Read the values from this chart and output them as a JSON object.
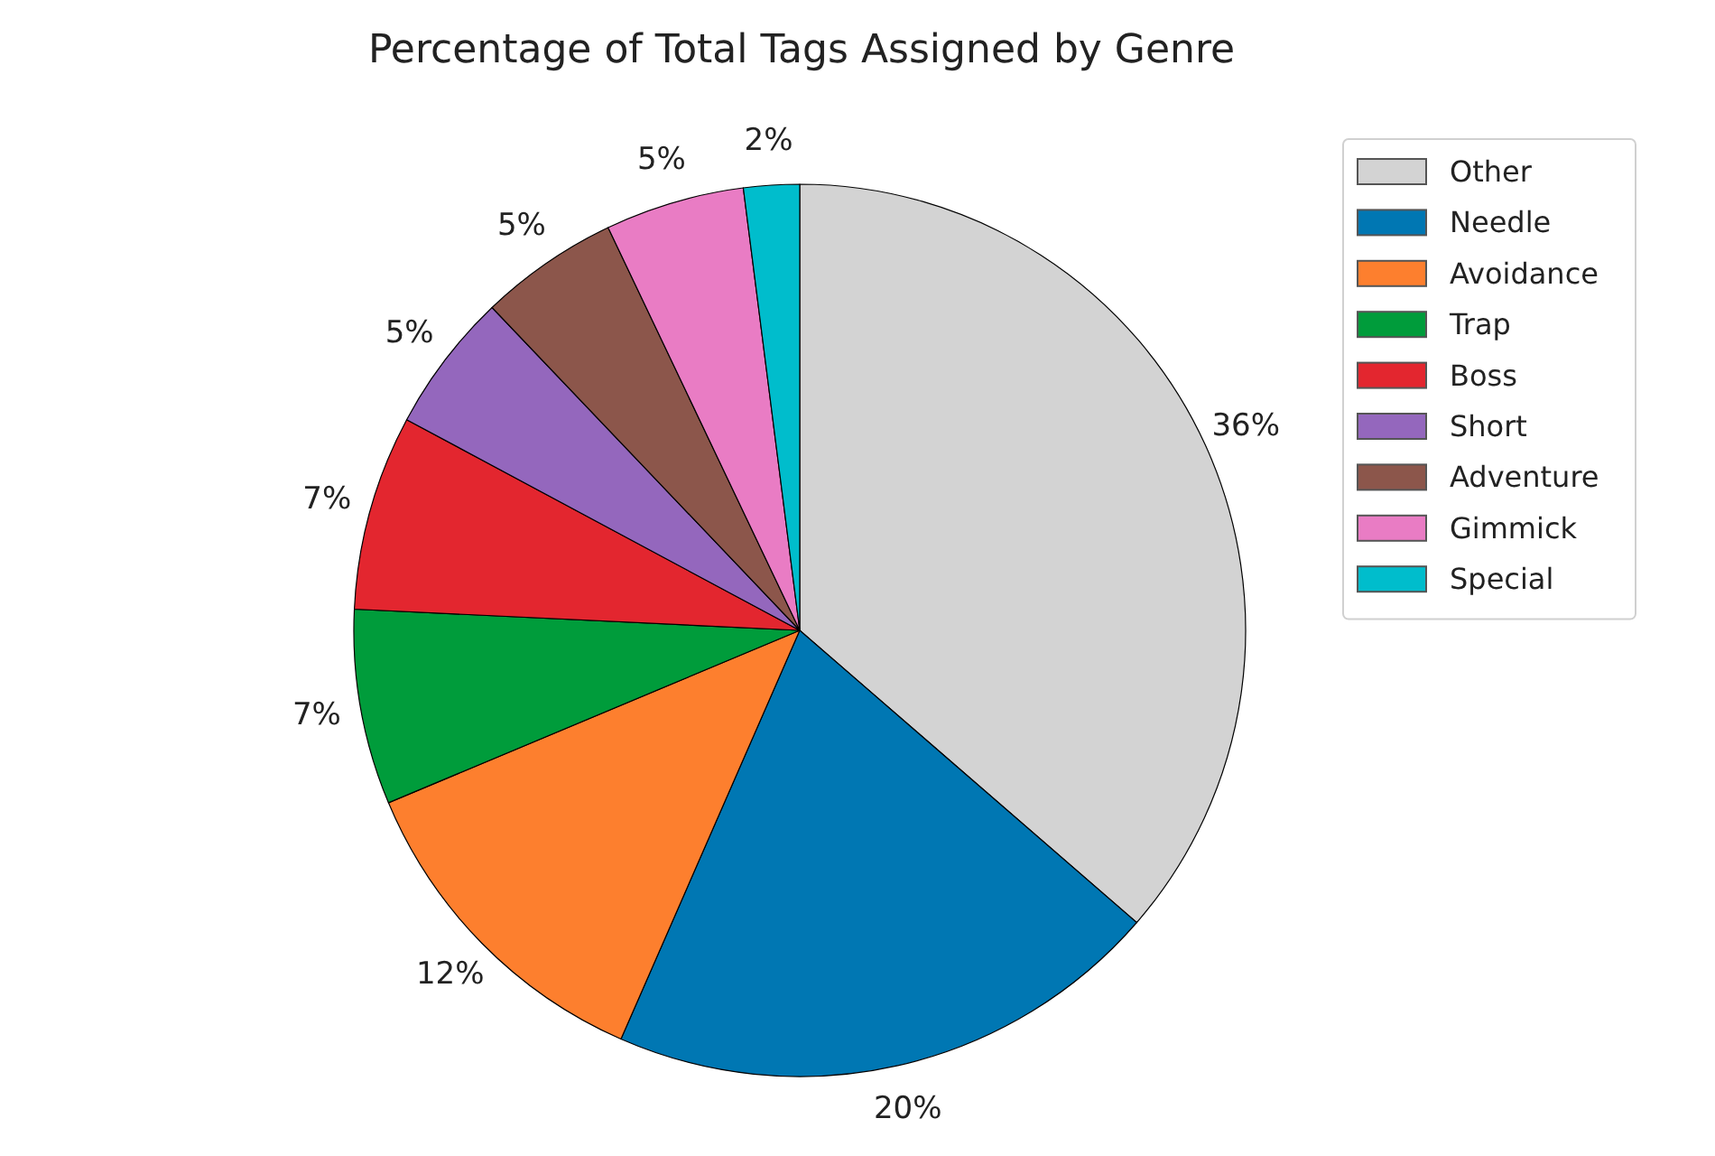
{
  "chart_data": {
    "type": "pie",
    "title": "Percentage of Total Tags Assigned by Genre",
    "categories": [
      "Other",
      "Needle",
      "Avoidance",
      "Trap",
      "Boss",
      "Short",
      "Adventure",
      "Gimmick",
      "Special"
    ],
    "values": [
      36,
      20,
      12,
      7,
      7,
      5,
      5,
      5,
      2
    ],
    "value_labels": [
      "36%",
      "20%",
      "12%",
      "7%",
      "7%",
      "5%",
      "5%",
      "5%",
      "2%"
    ],
    "colors": [
      "#d3d3d3",
      "#0077b3",
      "#fd7f2e",
      "#009c3b",
      "#e3262f",
      "#9467bd",
      "#8c564b",
      "#e97cc4",
      "#00bdcc"
    ],
    "legend": "top right"
  }
}
